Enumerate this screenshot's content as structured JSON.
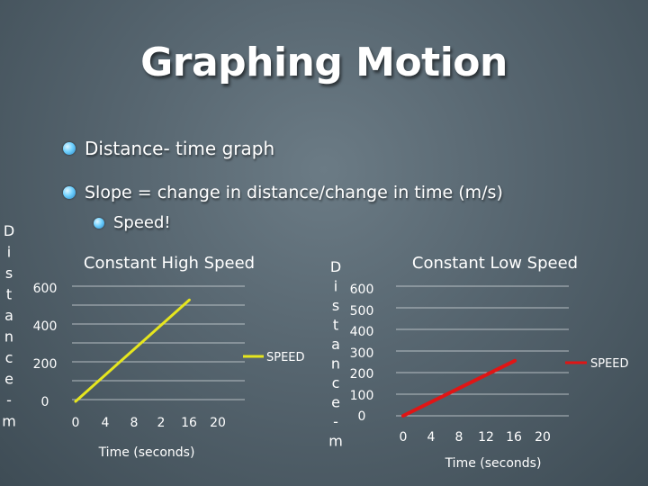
{
  "title": "Graphing Motion",
  "bullets": [
    "Distance- time graph",
    "Slope = change in distance/change in time (m/s)",
    "Speed!"
  ],
  "chart_data": [
    {
      "type": "line",
      "title": "Constant High Speed",
      "xlabel": "Time (seconds)",
      "ylabel": "Distance",
      "y_label_letters": [
        "D",
        "i",
        "s",
        "t",
        "a",
        "n",
        "c",
        "e",
        "-",
        "m"
      ],
      "x_ticks": [
        "0",
        "4",
        "8",
        "2",
        "16",
        "20"
      ],
      "y_ticks": [
        "0",
        "200",
        "400",
        "600"
      ],
      "ylim": [
        0,
        600
      ],
      "xlim": [
        0,
        20
      ],
      "grid": true,
      "legend": "right",
      "series": [
        {
          "name": "SPEED",
          "color": "#e6e61e",
          "x": [
            0,
            16
          ],
          "y": [
            0,
            520
          ]
        }
      ]
    },
    {
      "type": "line",
      "title": "Constant Low Speed",
      "xlabel": "Time (seconds)",
      "ylabel": "Distance",
      "y_label_letters": [
        "D",
        "i",
        "s",
        "t",
        "a",
        "n",
        "c",
        "e",
        "-",
        "m"
      ],
      "x_ticks": [
        "0",
        "4",
        "8",
        "12",
        "16",
        "20"
      ],
      "y_ticks": [
        "0",
        "100",
        "200",
        "300",
        "400",
        "500",
        "600"
      ],
      "ylim": [
        0,
        600
      ],
      "xlim": [
        0,
        20
      ],
      "grid": true,
      "legend": "right",
      "series": [
        {
          "name": "SPEED",
          "color": "#e01515",
          "x": [
            0,
            16
          ],
          "y": [
            0,
            250
          ]
        }
      ]
    }
  ]
}
